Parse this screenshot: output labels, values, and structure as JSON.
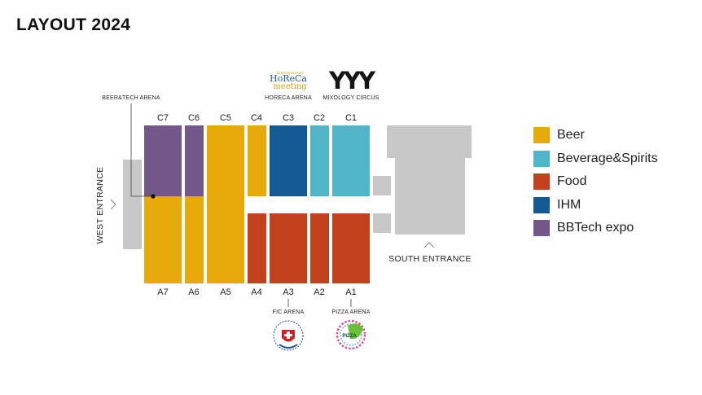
{
  "title": "LAYOUT 2024",
  "colors": {
    "beer": "#e8a90a",
    "beverage": "#4fb6c9",
    "food": "#c2411b",
    "ihm": "#135a94",
    "bbtech": "#73568a",
    "gray": "#c8c8c8"
  },
  "halls_top": [
    "C7",
    "C6",
    "C5",
    "C4",
    "C3",
    "C2",
    "C1"
  ],
  "halls_bottom": [
    "A7",
    "A6",
    "A5",
    "A4",
    "A3",
    "A2",
    "A1"
  ],
  "arenas": {
    "beertech": "BEER&TECH ARENA",
    "horeca": "HORECA ARENA",
    "mixology": "MIXOLOGY CIRCUS",
    "fic": "FIC ARENA",
    "pizza": "PIZZA ARENA"
  },
  "entrances": {
    "west": "WEST ENTRANCE",
    "south": "SOUTH ENTRANCE"
  },
  "logos": {
    "horeca_line1": "International",
    "horeca_line2": "HoReCa",
    "horeca_line3": "meeting",
    "mixology": "YYY",
    "pizza": "PIZZA",
    "fic": "Federazione Italiana Cuochi"
  },
  "legend": [
    {
      "label": "Beer",
      "color": "#e8a90a"
    },
    {
      "label": "Beverage&Spirits",
      "color": "#4fb6c9"
    },
    {
      "label": "Food",
      "color": "#c2411b"
    },
    {
      "label": "IHM",
      "color": "#135a94"
    },
    {
      "label": "BBTech expo",
      "color": "#73568a"
    }
  ]
}
